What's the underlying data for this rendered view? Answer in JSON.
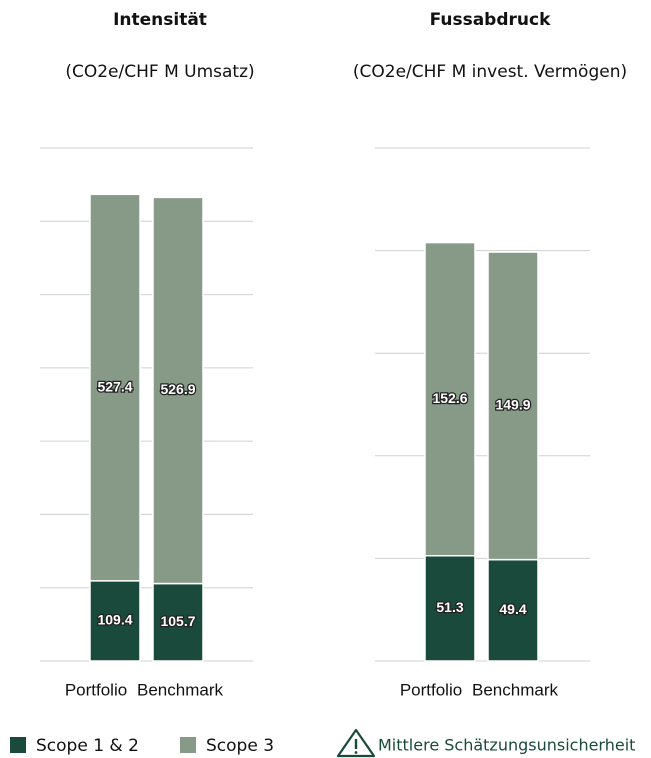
{
  "chart_data": [
    {
      "type": "stacked_bar",
      "title": "Intensität",
      "subtitle": "(CO2e/CHF M Umsatz)",
      "categories": [
        "Portfolio",
        "Benchmark"
      ],
      "series": [
        {
          "name": "Scope 1 & 2",
          "color": "#1a4a3c",
          "values": [
            109.4,
            105.7
          ]
        },
        {
          "name": "Scope 3",
          "color": "#879a87",
          "values": [
            527.4,
            526.9
          ]
        }
      ],
      "ylim": [
        0,
        700
      ],
      "yticks": [
        0,
        100,
        200,
        300,
        400,
        500,
        600,
        700
      ],
      "grid": true
    },
    {
      "type": "stacked_bar",
      "title": "Fussabdruck",
      "subtitle": "(CO2e/CHF M invest. Vermögen)",
      "categories": [
        "Portfolio",
        "Benchmark"
      ],
      "series": [
        {
          "name": "Scope 1 & 2",
          "color": "#1a4a3c",
          "values": [
            51.3,
            49.4
          ]
        },
        {
          "name": "Scope 3",
          "color": "#879a87",
          "values": [
            152.6,
            149.9
          ]
        }
      ],
      "ylim": [
        0,
        250
      ],
      "yticks": [
        0,
        50,
        100,
        150,
        200,
        250
      ],
      "grid": true
    }
  ],
  "footnote": "Mittlere Schätzungsunsicherheit"
}
